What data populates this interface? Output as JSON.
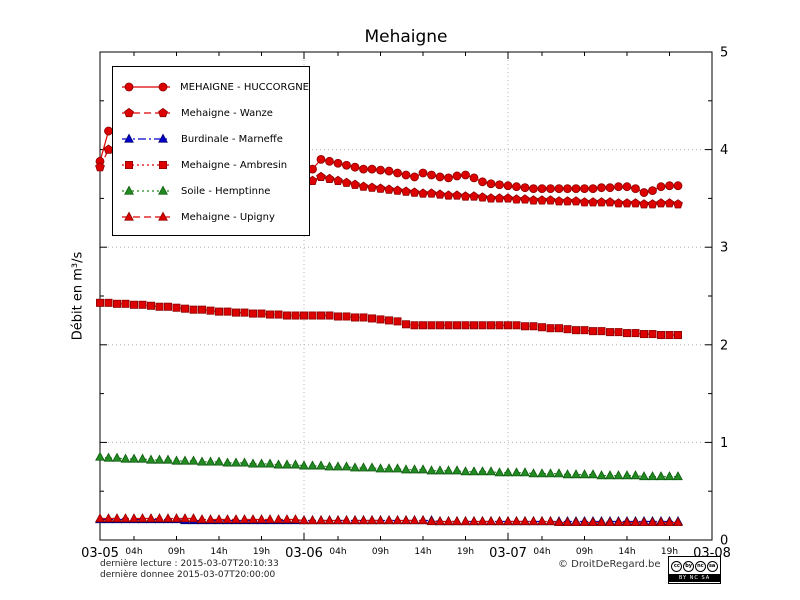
{
  "title": "Mehaigne",
  "y_axis_label": "Débit en m³/s",
  "footer": {
    "last_reading": "dernière lecture : 2015-03-07T20:10:33",
    "last_data": "dernière donnee  2015-03-07T20:00:00",
    "copyright": "© DroitDeRegard.be",
    "license": {
      "circles": [
        "cc",
        "by",
        "nc",
        "sa"
      ],
      "strip": "BY NC SA"
    }
  },
  "chart_data": {
    "type": "line",
    "title": "Mehaigne",
    "ylabel": "Débit en m³/s",
    "ylim": [
      0,
      5
    ],
    "y_ticks": [
      0,
      1,
      2,
      3,
      4,
      5
    ],
    "xlim_hours": [
      0,
      72
    ],
    "x_origin": "2015-03-05 00:00",
    "x_start_hour": 0,
    "x_step_hours": 1,
    "grid": "dotted",
    "legend_position": "top-left",
    "x_ticks_major": [
      {
        "hour": 0,
        "label": "03-05"
      },
      {
        "hour": 24,
        "label": "03-06"
      },
      {
        "hour": 48,
        "label": "03-07"
      },
      {
        "hour": 72,
        "label": "03-08"
      }
    ],
    "x_ticks_minor": [
      {
        "hour": 4,
        "label": "04h"
      },
      {
        "hour": 9,
        "label": "09h"
      },
      {
        "hour": 14,
        "label": "14h"
      },
      {
        "hour": 19,
        "label": "19h"
      },
      {
        "hour": 28,
        "label": "04h"
      },
      {
        "hour": 33,
        "label": "09h"
      },
      {
        "hour": 38,
        "label": "14h"
      },
      {
        "hour": 43,
        "label": "19h"
      },
      {
        "hour": 52,
        "label": "04h"
      },
      {
        "hour": 57,
        "label": "09h"
      },
      {
        "hour": 62,
        "label": "14h"
      },
      {
        "hour": 67,
        "label": "19h"
      }
    ],
    "series": [
      {
        "name": "MEHAIGNE - HUCCORGNE",
        "color": "#dd0000",
        "marker": "circle",
        "line": "solid",
        "values": [
          3.88,
          4.19,
          4.15,
          4.1,
          4.06,
          4.02,
          3.98,
          3.95,
          3.92,
          3.9,
          3.88,
          3.86,
          3.84,
          3.82,
          3.8,
          3.79,
          3.78,
          3.77,
          3.76,
          3.75,
          3.74,
          3.74,
          3.73,
          3.73,
          3.75,
          3.8,
          3.9,
          3.88,
          3.86,
          3.84,
          3.82,
          3.8,
          3.8,
          3.79,
          3.78,
          3.76,
          3.74,
          3.72,
          3.76,
          3.74,
          3.72,
          3.71,
          3.73,
          3.74,
          3.71,
          3.67,
          3.65,
          3.64,
          3.63,
          3.62,
          3.61,
          3.6,
          3.6,
          3.6,
          3.6,
          3.6,
          3.6,
          3.6,
          3.6,
          3.61,
          3.61,
          3.62,
          3.62,
          3.6,
          3.56,
          3.58,
          3.62,
          3.63,
          3.63
        ]
      },
      {
        "name": "Mehaigne - Wanze",
        "color": "#dd0000",
        "marker": "pentagon",
        "line": "dashed",
        "values": [
          3.82,
          4.0,
          3.97,
          3.94,
          3.91,
          3.88,
          3.85,
          3.83,
          3.81,
          3.79,
          3.77,
          3.75,
          3.73,
          3.72,
          3.71,
          3.7,
          3.69,
          3.68,
          3.68,
          3.67,
          3.66,
          3.66,
          3.65,
          3.65,
          3.66,
          3.68,
          3.72,
          3.7,
          3.68,
          3.66,
          3.64,
          3.62,
          3.61,
          3.6,
          3.59,
          3.58,
          3.57,
          3.56,
          3.55,
          3.55,
          3.54,
          3.53,
          3.53,
          3.52,
          3.52,
          3.51,
          3.5,
          3.5,
          3.5,
          3.49,
          3.49,
          3.48,
          3.48,
          3.48,
          3.47,
          3.47,
          3.47,
          3.46,
          3.46,
          3.46,
          3.46,
          3.45,
          3.45,
          3.45,
          3.44,
          3.44,
          3.45,
          3.45,
          3.44
        ]
      },
      {
        "name": "Burdinale - Marneffe",
        "color": "#0000cc",
        "marker": "triangle",
        "line": "dashdot",
        "values": [
          0.21,
          0.21,
          0.21,
          0.21,
          0.21,
          0.21,
          0.21,
          0.21,
          0.21,
          0.21,
          0.2,
          0.2,
          0.2,
          0.2,
          0.2,
          0.2,
          0.2,
          0.2,
          0.2,
          0.2,
          0.2,
          0.2,
          0.2,
          0.2,
          0.2,
          0.2,
          0.2,
          0.2,
          0.2,
          0.2,
          0.2,
          0.2,
          0.2,
          0.2,
          0.2,
          0.2,
          0.2,
          0.2,
          0.2,
          0.2,
          0.19,
          0.19,
          0.19,
          0.19,
          0.19,
          0.19,
          0.19,
          0.19,
          0.19,
          0.19,
          0.19,
          0.19,
          0.19,
          0.19,
          0.19,
          0.19,
          0.19,
          0.19,
          0.19,
          0.19,
          0.19,
          0.19,
          0.19,
          0.19,
          0.19,
          0.19,
          0.19,
          0.19,
          0.19
        ]
      },
      {
        "name": "Mehaigne - Ambresin",
        "color": "#dd0000",
        "marker": "square",
        "line": "dotted",
        "values": [
          2.43,
          2.43,
          2.42,
          2.42,
          2.41,
          2.41,
          2.4,
          2.39,
          2.39,
          2.38,
          2.37,
          2.36,
          2.36,
          2.35,
          2.34,
          2.34,
          2.33,
          2.33,
          2.32,
          2.32,
          2.31,
          2.31,
          2.3,
          2.3,
          2.3,
          2.3,
          2.3,
          2.3,
          2.29,
          2.29,
          2.28,
          2.28,
          2.27,
          2.26,
          2.25,
          2.24,
          2.21,
          2.2,
          2.2,
          2.2,
          2.2,
          2.2,
          2.2,
          2.2,
          2.2,
          2.2,
          2.2,
          2.2,
          2.2,
          2.2,
          2.19,
          2.19,
          2.18,
          2.17,
          2.17,
          2.16,
          2.15,
          2.15,
          2.14,
          2.14,
          2.13,
          2.13,
          2.12,
          2.12,
          2.11,
          2.11,
          2.1,
          2.1,
          2.1
        ]
      },
      {
        "name": "Soile - Hemptinne",
        "color": "#228b22",
        "marker": "triangle",
        "line": "dotted",
        "values": [
          0.85,
          0.84,
          0.84,
          0.83,
          0.83,
          0.83,
          0.82,
          0.82,
          0.82,
          0.81,
          0.81,
          0.81,
          0.8,
          0.8,
          0.8,
          0.79,
          0.79,
          0.79,
          0.78,
          0.78,
          0.78,
          0.77,
          0.77,
          0.77,
          0.76,
          0.76,
          0.76,
          0.75,
          0.75,
          0.75,
          0.74,
          0.74,
          0.74,
          0.73,
          0.73,
          0.73,
          0.72,
          0.72,
          0.72,
          0.71,
          0.71,
          0.71,
          0.71,
          0.7,
          0.7,
          0.7,
          0.7,
          0.69,
          0.69,
          0.69,
          0.69,
          0.68,
          0.68,
          0.68,
          0.68,
          0.67,
          0.67,
          0.67,
          0.67,
          0.66,
          0.66,
          0.66,
          0.66,
          0.66,
          0.65,
          0.65,
          0.65,
          0.65,
          0.65
        ]
      },
      {
        "name": "Mehaigne - Upigny",
        "color": "#dd0000",
        "marker": "triangle",
        "line": "dashed",
        "values": [
          0.22,
          0.22,
          0.22,
          0.22,
          0.22,
          0.22,
          0.22,
          0.22,
          0.22,
          0.22,
          0.22,
          0.22,
          0.21,
          0.21,
          0.21,
          0.21,
          0.21,
          0.21,
          0.21,
          0.21,
          0.21,
          0.21,
          0.21,
          0.21,
          0.2,
          0.2,
          0.2,
          0.2,
          0.2,
          0.2,
          0.2,
          0.2,
          0.2,
          0.2,
          0.2,
          0.2,
          0.2,
          0.2,
          0.2,
          0.19,
          0.19,
          0.19,
          0.19,
          0.19,
          0.19,
          0.19,
          0.19,
          0.19,
          0.19,
          0.19,
          0.19,
          0.19,
          0.19,
          0.19,
          0.18,
          0.18,
          0.18,
          0.18,
          0.18,
          0.18,
          0.18,
          0.18,
          0.18,
          0.18,
          0.18,
          0.18,
          0.18,
          0.18,
          0.18
        ]
      }
    ]
  }
}
